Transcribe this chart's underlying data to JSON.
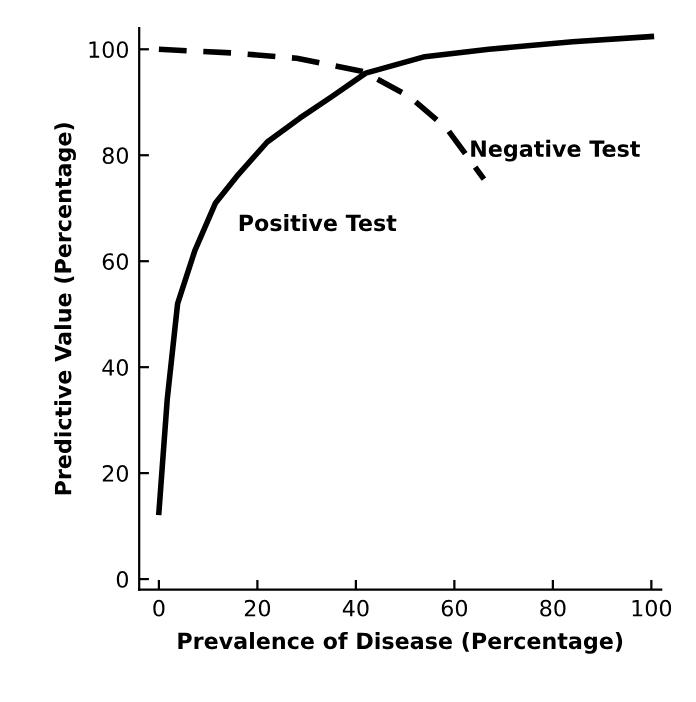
{
  "chart_data": {
    "type": "line",
    "xlabel": "Prevalence of Disease (Percentage)",
    "ylabel": "Predictive Value (Percentage)",
    "xlim": [
      -4,
      102
    ],
    "ylim": [
      -2,
      104
    ],
    "xticks": [
      0,
      20,
      40,
      60,
      80,
      100
    ],
    "yticks": [
      0,
      20,
      40,
      60,
      80,
      100
    ],
    "grid": false,
    "legend": false,
    "series": [
      {
        "name": "Positive Test",
        "color": "#000000",
        "line_style": "solid",
        "x": [
          0,
          1.7,
          3.8,
          7.3,
          11.5,
          15.8,
          22,
          28.6,
          35,
          42,
          54,
          67,
          84,
          100
        ],
        "values": [
          12.6,
          34,
          52,
          62,
          71,
          76,
          82.5,
          87,
          91,
          95.5,
          98.6,
          100,
          101.4,
          102.4
        ]
      },
      {
        "name": "Negative Test",
        "color": "#000000",
        "line_style": "dashed",
        "x": [
          0,
          15,
          28,
          41.5,
          51,
          58.5,
          66
        ],
        "values": [
          100,
          99.3,
          98.3,
          95.8,
          91,
          85,
          75.5
        ]
      }
    ]
  }
}
